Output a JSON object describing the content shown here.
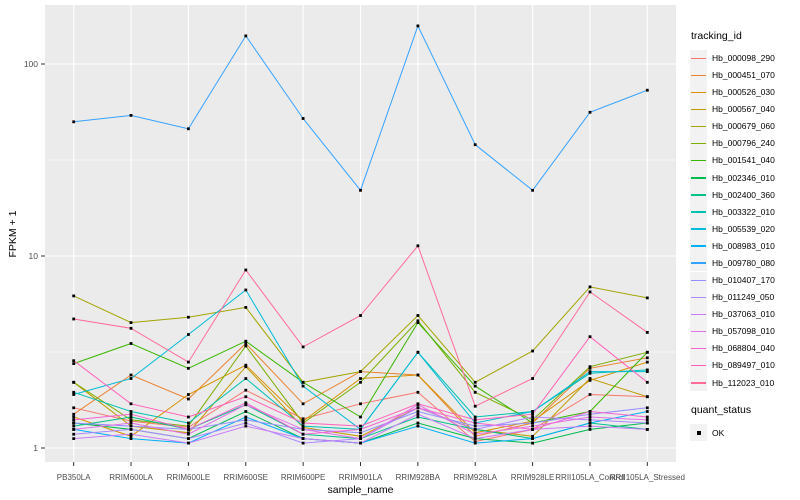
{
  "figure": {
    "panel_bg": "#EBEBEB",
    "grid_color": "#FFFFFF",
    "tick_color": "#333333",
    "tick_label_color": "#4D4D4D",
    "marker_color": "#000000"
  },
  "chart_data": {
    "type": "line",
    "title": "",
    "xlabel": "sample_name",
    "ylabel": "FPKM + 1",
    "y_scale": "log10",
    "y_ticks": [
      1,
      10,
      100
    ],
    "y_tick_labels": [
      "1",
      "10",
      "100"
    ],
    "y_minor_ticks": [
      3.162,
      31.62
    ],
    "ylim": [
      0.84,
      200
    ],
    "grid": true,
    "legend_position": "right",
    "categories": [
      "PB350LA",
      "RRIM600LA",
      "RRIM600LE",
      "RRIM600SE",
      "RRIM600PE",
      "RRIM901LA",
      "RRIM928BA",
      "RRIM928LA",
      "RRIM928LE",
      "RRII105LA_Control",
      "RRII105LA_Stressed"
    ],
    "legend": {
      "color_title": "tracking_id",
      "shape_title": "quant_status",
      "shape_entries": [
        {
          "label": "OK",
          "shape": "filled-square"
        }
      ]
    },
    "series": [
      {
        "name": "Hb_000098_290",
        "color": "#F8766D",
        "values": [
          1.62,
          1.38,
          1.28,
          2.0,
          1.42,
          1.7,
          1.95,
          1.08,
          1.25,
          1.9,
          1.85
        ]
      },
      {
        "name": "Hb_000451_070",
        "color": "#EA8331",
        "values": [
          1.5,
          2.4,
          1.8,
          3.5,
          1.7,
          2.5,
          2.4,
          1.15,
          1.35,
          2.6,
          2.95
        ]
      },
      {
        "name": "Hb_000526_030",
        "color": "#D89000",
        "values": [
          1.45,
          1.15,
          1.9,
          2.7,
          1.38,
          2.3,
          2.4,
          1.2,
          1.38,
          2.25,
          2.8
        ]
      },
      {
        "name": "Hb_000567_040",
        "color": "#C09B00",
        "values": [
          2.2,
          1.3,
          1.2,
          2.65,
          1.28,
          1.15,
          1.62,
          1.25,
          1.15,
          2.3,
          1.85
        ]
      },
      {
        "name": "Hb_000679_060",
        "color": "#A3A500",
        "values": [
          6.2,
          4.5,
          4.8,
          5.4,
          2.2,
          2.5,
          4.9,
          2.2,
          3.2,
          6.9,
          6.05
        ]
      },
      {
        "name": "Hb_000796_240",
        "color": "#7CAE00",
        "values": [
          2.2,
          1.4,
          1.3,
          3.4,
          1.35,
          2.2,
          4.6,
          1.95,
          1.4,
          2.65,
          3.15
        ]
      },
      {
        "name": "Hb_001541_040",
        "color": "#39B600",
        "values": [
          2.75,
          3.5,
          2.6,
          3.6,
          2.2,
          1.45,
          4.5,
          2.1,
          1.35,
          1.55,
          3.15
        ]
      },
      {
        "name": "Hb_002346_010",
        "color": "#00BB4E",
        "values": [
          1.35,
          1.25,
          1.12,
          1.55,
          1.12,
          1.06,
          1.35,
          1.12,
          1.06,
          1.25,
          1.35
        ]
      },
      {
        "name": "Hb_002400_360",
        "color": "#00C087",
        "values": [
          1.3,
          1.45,
          1.25,
          1.68,
          1.18,
          1.12,
          1.45,
          1.25,
          1.12,
          1.35,
          1.25
        ]
      },
      {
        "name": "Hb_003322_010",
        "color": "#00C0B2",
        "values": [
          1.95,
          1.55,
          1.35,
          2.3,
          1.3,
          1.25,
          3.15,
          1.45,
          1.55,
          2.45,
          2.55
        ]
      },
      {
        "name": "Hb_005539_020",
        "color": "#00BCD8",
        "values": [
          1.9,
          2.3,
          3.9,
          6.65,
          2.1,
          1.25,
          3.15,
          1.35,
          1.55,
          2.5,
          2.5
        ]
      },
      {
        "name": "Hb_008983_010",
        "color": "#00B0F6",
        "values": [
          1.25,
          1.12,
          1.06,
          1.45,
          1.12,
          1.06,
          1.3,
          1.06,
          1.12,
          1.35,
          1.55
        ]
      },
      {
        "name": "Hb_009780_080",
        "color": "#35A2FF",
        "values": [
          50,
          54,
          46,
          140,
          52,
          22,
          158,
          38,
          22,
          56,
          73
        ]
      },
      {
        "name": "Hb_010407_170",
        "color": "#9590FF",
        "values": [
          1.35,
          1.3,
          1.25,
          1.4,
          1.25,
          1.2,
          1.55,
          1.3,
          1.35,
          1.5,
          1.62
        ]
      },
      {
        "name": "Hb_011249_050",
        "color": "#AE87FF",
        "values": [
          1.18,
          1.25,
          1.12,
          1.35,
          1.06,
          1.12,
          1.62,
          1.25,
          1.45,
          1.4,
          1.35
        ]
      },
      {
        "name": "Hb_037063_010",
        "color": "#C97CF8",
        "values": [
          1.12,
          1.18,
          1.06,
          1.3,
          1.12,
          1.06,
          1.5,
          1.12,
          1.25,
          1.3,
          1.25
        ]
      },
      {
        "name": "Hb_057098_010",
        "color": "#E272E8",
        "values": [
          1.25,
          1.35,
          1.18,
          1.68,
          1.25,
          1.12,
          1.68,
          1.18,
          1.3,
          1.45,
          1.4
        ]
      },
      {
        "name": "Hb_068804_040",
        "color": "#F464D2",
        "values": [
          1.4,
          1.5,
          1.25,
          1.72,
          1.18,
          1.25,
          1.62,
          1.35,
          1.25,
          1.55,
          1.45
        ]
      },
      {
        "name": "Hb_089497_010",
        "color": "#FF61B9",
        "values": [
          2.85,
          1.7,
          1.45,
          1.85,
          1.35,
          1.3,
          1.7,
          1.4,
          1.5,
          3.8,
          2.2
        ]
      },
      {
        "name": "Hb_112023_010",
        "color": "#FF6B97",
        "values": [
          4.7,
          4.2,
          2.8,
          8.45,
          3.36,
          4.9,
          11.3,
          1.65,
          2.3,
          6.5,
          4.0
        ]
      }
    ]
  }
}
